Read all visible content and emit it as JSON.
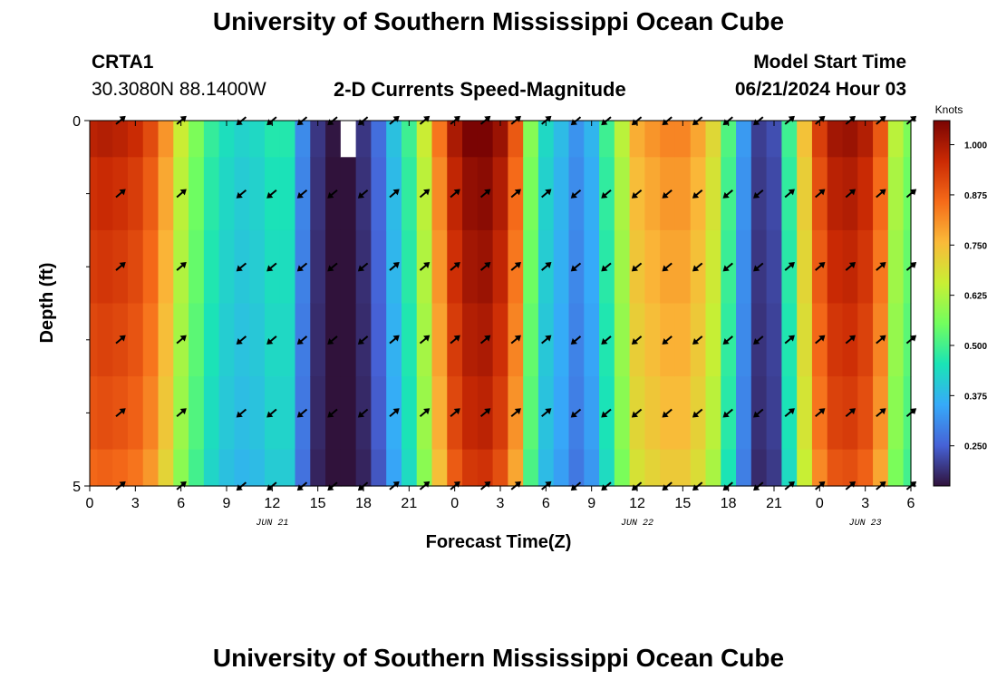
{
  "page": {
    "title": "University of Southern Mississippi Ocean Cube",
    "footer_title": "University of Southern Mississippi Ocean Cube",
    "station_id": "CRTA1",
    "coordinates": "30.3080N  88.1400W",
    "chart_subtitle": "2-D Currents Speed-Magnitude",
    "model_start_label": "Model Start Time",
    "model_start_value": "06/21/2024 Hour 03"
  },
  "colors": {
    "palette": [
      "#30123b",
      "#4662d7",
      "#36aaf9",
      "#1ae4b6",
      "#72fe5e",
      "#c8ef34",
      "#faba39",
      "#f66b19",
      "#ca2a04",
      "#7a0403"
    ],
    "gap": "#ffffff",
    "arrow": "#000000"
  },
  "chart_data": {
    "type": "heatmap",
    "title": "2-D Currents Speed-Magnitude",
    "xlabel": "Forecast Time(Z)",
    "ylabel": "Depth (ft)",
    "colorbar_label": "Knots",
    "vmin": 0.15,
    "vmax": 1.06,
    "x_range_hours": [
      0,
      54
    ],
    "y_range_ft": [
      0,
      5
    ],
    "y_tick_labels": [
      "0",
      "5"
    ],
    "y_tick_values": [
      0,
      5
    ],
    "y_minor_ticks": [
      1,
      2,
      3,
      4
    ],
    "x_ticks": [
      {
        "hour": 0,
        "label": "0"
      },
      {
        "hour": 3,
        "label": "3"
      },
      {
        "hour": 6,
        "label": "6"
      },
      {
        "hour": 9,
        "label": "9"
      },
      {
        "hour": 12,
        "label": "12"
      },
      {
        "hour": 15,
        "label": "15"
      },
      {
        "hour": 18,
        "label": "18"
      },
      {
        "hour": 21,
        "label": "21"
      },
      {
        "hour": 24,
        "label": "0"
      },
      {
        "hour": 27,
        "label": "3"
      },
      {
        "hour": 30,
        "label": "6"
      },
      {
        "hour": 33,
        "label": "9"
      },
      {
        "hour": 36,
        "label": "12"
      },
      {
        "hour": 39,
        "label": "15"
      },
      {
        "hour": 42,
        "label": "18"
      },
      {
        "hour": 45,
        "label": "21"
      },
      {
        "hour": 48,
        "label": "0"
      },
      {
        "hour": 51,
        "label": "3"
      },
      {
        "hour": 54,
        "label": "6"
      }
    ],
    "date_labels": [
      {
        "hour": 12,
        "label": "JUN 21"
      },
      {
        "hour": 36,
        "label": "JUN 22"
      },
      {
        "hour": 51,
        "label": "JUN 23"
      }
    ],
    "colorbar_ticks": [
      {
        "value": 1.0,
        "label": "1.000"
      },
      {
        "value": 0.875,
        "label": "0.875"
      },
      {
        "value": 0.75,
        "label": "0.750"
      },
      {
        "value": 0.625,
        "label": "0.625"
      },
      {
        "value": 0.5,
        "label": "0.500"
      },
      {
        "value": 0.375,
        "label": "0.375"
      },
      {
        "value": 0.25,
        "label": "0.250"
      }
    ],
    "time_hours": [
      0,
      1,
      2,
      3,
      4,
      5,
      6,
      7,
      8,
      9,
      10,
      11,
      12,
      13,
      14,
      15,
      16,
      17,
      18,
      19,
      20,
      21,
      22,
      23,
      24,
      25,
      26,
      27,
      28,
      29,
      30,
      31,
      32,
      33,
      34,
      35,
      36,
      37,
      38,
      39,
      40,
      41,
      42,
      43,
      44,
      45,
      46,
      47,
      48,
      49,
      50,
      51,
      52,
      53,
      54
    ],
    "depth_layer_edges_ft": [
      0,
      0.5,
      1.5,
      2.5,
      3.5,
      4.5,
      5
    ],
    "speed_profile_knots": [
      0.95,
      0.96,
      0.95,
      0.93,
      0.88,
      0.78,
      0.64,
      0.55,
      0.47,
      0.43,
      0.41,
      0.42,
      0.45,
      0.45,
      0.3,
      0.19,
      0.15,
      0.15,
      0.19,
      0.26,
      0.38,
      0.48,
      0.64,
      0.82,
      0.97,
      1.03,
      1.04,
      0.99,
      0.86,
      0.56,
      0.42,
      0.37,
      0.31,
      0.36,
      0.48,
      0.62,
      0.75,
      0.78,
      0.8,
      0.8,
      0.76,
      0.68,
      0.5,
      0.32,
      0.2,
      0.22,
      0.48,
      0.72,
      0.9,
      0.98,
      0.99,
      0.96,
      0.86,
      0.62,
      0.55
    ],
    "depth_factors": [
      1.03,
      1.0,
      0.98,
      0.96,
      0.94,
      0.91
    ],
    "missing_cells": [
      {
        "hour": 17,
        "layer": 0
      }
    ],
    "arrow_hours": [
      2,
      6,
      10,
      12,
      14,
      16,
      18,
      20,
      22,
      24,
      26,
      28,
      30,
      32,
      34,
      36,
      38,
      40,
      42,
      44,
      46,
      48,
      50,
      52,
      54
    ],
    "arrow_direction_deg": [
      -40,
      -40,
      140,
      140,
      140,
      140,
      140,
      -40,
      -40,
      -40,
      -40,
      -40,
      -40,
      140,
      140,
      140,
      140,
      140,
      140,
      140,
      -40,
      -40,
      -40,
      -40,
      -40
    ]
  }
}
